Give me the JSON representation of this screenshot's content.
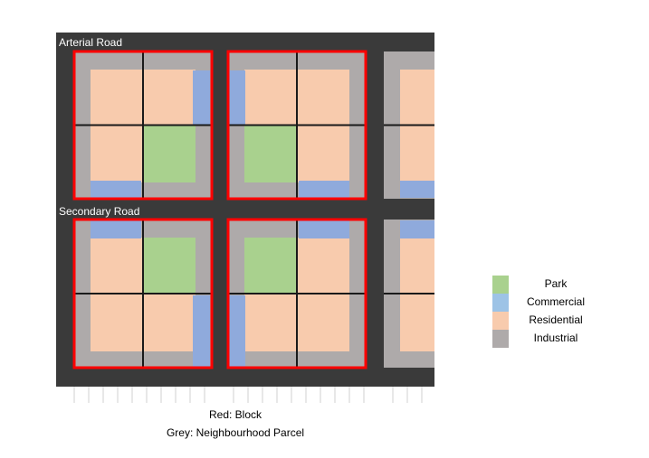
{
  "labels": {
    "arterial_road": "Arterial Road",
    "secondary_road": "Secondary Road"
  },
  "captions": {
    "block": "Red: Block",
    "parcel": "Grey: Neighbourhood Parcel"
  },
  "legend": [
    {
      "label": "Park",
      "color": "#a9d18e"
    },
    {
      "label": "Commercial",
      "color": "#9dc3e6"
    },
    {
      "label": "Residential",
      "color": "#f8cbad"
    },
    {
      "label": "Industrial",
      "color": "#aeaaaa"
    }
  ],
  "colors": {
    "road": "#3a3a3a",
    "park": "#a9d18e",
    "commercial": "#8faadc",
    "residential": "#f8cbad",
    "industrial": "#aeaaaa",
    "block_outline": "#ff0000",
    "divider": "#1a1a1a",
    "lot_line": "#d0d0d0"
  }
}
